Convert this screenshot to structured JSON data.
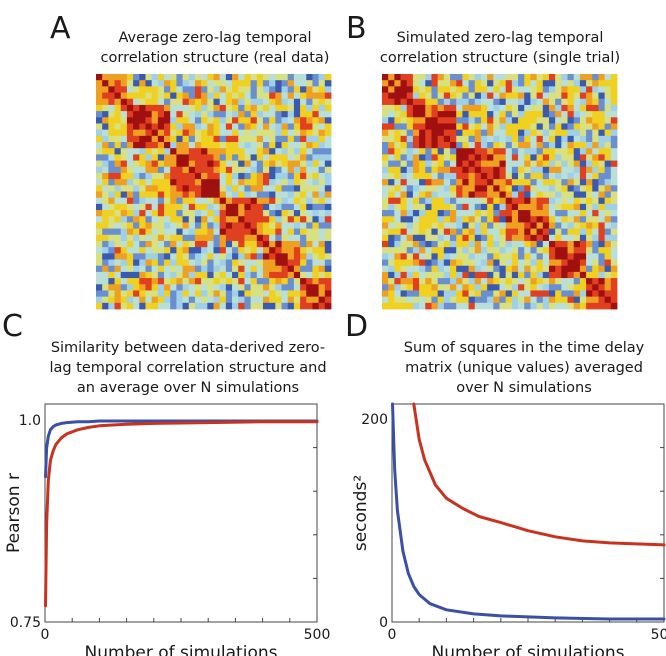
{
  "panels": {
    "A": {
      "letter": "A",
      "title_lines": [
        "Average zero-lag temporal",
        "correlation structure (real data)"
      ]
    },
    "B": {
      "letter": "B",
      "title_lines": [
        "Simulated zero-lag temporal",
        "correlation structure (single trial)"
      ]
    },
    "C": {
      "letter": "C",
      "title_lines": [
        "Similarity between data-derived zero-",
        "lag temporal correlation structure and",
        "an average over N simulations"
      ]
    },
    "D": {
      "letter": "D",
      "title_lines": [
        "Sum of squares in the time delay",
        "matrix (unique values) averaged",
        "over N simulations"
      ]
    }
  },
  "colors": {
    "blue_series": "#3b4fa8",
    "red_series": "#c8321e",
    "axis": "#444444",
    "heatmap_scale": [
      "#3a5ab0",
      "#6a8fd0",
      "#9fd0e8",
      "#b8e0d8",
      "#d8e080",
      "#f0d020",
      "#f0a020",
      "#e04020",
      "#a01010"
    ]
  },
  "chart_data": [
    {
      "type": "heatmap",
      "panel": "A",
      "title": "Average zero-lag temporal correlation structure (real data)",
      "size": 38,
      "diagonal_blocks": [
        [
          0,
          5
        ],
        [
          5,
          12
        ],
        [
          12,
          20
        ],
        [
          20,
          27
        ],
        [
          27,
          33
        ],
        [
          33,
          38
        ]
      ],
      "seed": 11
    },
    {
      "type": "heatmap",
      "panel": "B",
      "title": "Simulated zero-lag temporal correlation structure (single trial)",
      "size": 38,
      "diagonal_blocks": [
        [
          0,
          5
        ],
        [
          5,
          12
        ],
        [
          12,
          20
        ],
        [
          20,
          27
        ],
        [
          27,
          33
        ],
        [
          33,
          38
        ]
      ],
      "seed": 29
    },
    {
      "type": "line",
      "panel": "C",
      "title": "Similarity between data-derived zero-lag temporal correlation structure and an average over N simulations",
      "xlabel": "Number of simulations",
      "ylabel": "Pearson r",
      "xlim": [
        0,
        500
      ],
      "ylim": [
        0.75,
        1.02
      ],
      "x_ticks": [
        "0",
        "500"
      ],
      "y_ticks": [
        "0.75",
        "1.0"
      ],
      "series": [
        {
          "color_key": "blue_series",
          "x": [
            1,
            3,
            6,
            10,
            15,
            20,
            30,
            40,
            60,
            80,
            100,
            150,
            200,
            300,
            400,
            500
          ],
          "y": [
            0.93,
            0.965,
            0.98,
            0.988,
            0.992,
            0.994,
            0.996,
            0.997,
            0.998,
            0.998,
            0.999,
            0.999,
            0.999,
            0.999,
            0.999,
            0.999
          ]
        },
        {
          "color_key": "red_series",
          "x": [
            1,
            3,
            6,
            10,
            15,
            20,
            30,
            40,
            60,
            80,
            100,
            150,
            200,
            300,
            400,
            500
          ],
          "y": [
            0.77,
            0.87,
            0.925,
            0.95,
            0.962,
            0.97,
            0.978,
            0.983,
            0.988,
            0.991,
            0.993,
            0.995,
            0.996,
            0.997,
            0.998,
            0.998
          ]
        }
      ]
    },
    {
      "type": "line",
      "panel": "D",
      "title": "Sum of squares in the time delay matrix (unique values) averaged over N simulations",
      "xlabel": "Number of simulations",
      "ylabel": "seconds²",
      "xlim": [
        0,
        500
      ],
      "ylim": [
        0,
        215
      ],
      "x_ticks": [
        "0",
        "500"
      ],
      "y_ticks": [
        "0",
        "200"
      ],
      "series": [
        {
          "color_key": "blue_series",
          "x": [
            1,
            5,
            10,
            20,
            30,
            40,
            50,
            70,
            100,
            150,
            200,
            250,
            300,
            400,
            500
          ],
          "y": [
            215,
            150,
            110,
            70,
            48,
            35,
            27,
            18,
            12,
            8,
            6,
            5,
            4,
            3,
            3
          ]
        },
        {
          "color_key": "red_series",
          "x": [
            40,
            50,
            60,
            80,
            100,
            130,
            160,
            200,
            250,
            300,
            350,
            400,
            450,
            500
          ],
          "y": [
            215,
            180,
            160,
            135,
            122,
            112,
            104,
            98,
            90,
            84,
            80,
            78,
            77,
            76
          ]
        }
      ]
    }
  ]
}
